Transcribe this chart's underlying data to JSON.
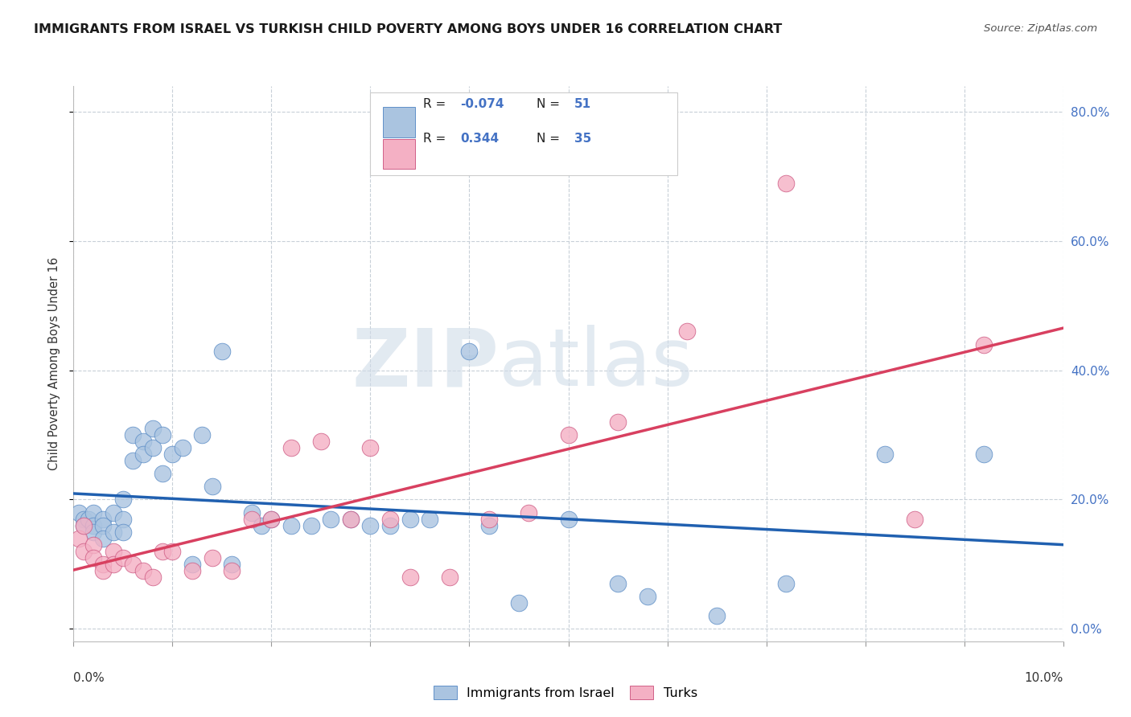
{
  "title": "IMMIGRANTS FROM ISRAEL VS TURKISH CHILD POVERTY AMONG BOYS UNDER 16 CORRELATION CHART",
  "source": "Source: ZipAtlas.com",
  "ylabel": "Child Poverty Among Boys Under 16",
  "legend_label1": "Immigrants from Israel",
  "legend_label2": "Turks",
  "R1": "-0.074",
  "N1": "51",
  "R2": "0.344",
  "N2": "35",
  "color_blue": "#aac4e0",
  "color_pink": "#f4b0c4",
  "line_color_blue": "#2060b0",
  "line_color_pink": "#d84060",
  "edge_blue": "#6090c8",
  "edge_pink": "#d06088",
  "xlim": [
    0.0,
    0.1
  ],
  "ylim": [
    -0.02,
    0.84
  ],
  "yticks": [
    0.0,
    0.2,
    0.4,
    0.6,
    0.8
  ],
  "yticklabels_right": [
    "0.0%",
    "20.0%",
    "40.0%",
    "60.0%",
    "80.0%"
  ],
  "blue_x": [
    0.0005,
    0.001,
    0.001,
    0.0015,
    0.002,
    0.002,
    0.002,
    0.003,
    0.003,
    0.003,
    0.004,
    0.004,
    0.005,
    0.005,
    0.005,
    0.006,
    0.006,
    0.007,
    0.007,
    0.008,
    0.008,
    0.009,
    0.009,
    0.01,
    0.011,
    0.012,
    0.013,
    0.014,
    0.015,
    0.016,
    0.018,
    0.019,
    0.02,
    0.022,
    0.024,
    0.026,
    0.028,
    0.03,
    0.032,
    0.034,
    0.036,
    0.04,
    0.042,
    0.045,
    0.05,
    0.055,
    0.058,
    0.065,
    0.072,
    0.082,
    0.092
  ],
  "blue_y": [
    0.18,
    0.17,
    0.16,
    0.17,
    0.18,
    0.16,
    0.15,
    0.17,
    0.16,
    0.14,
    0.18,
    0.15,
    0.2,
    0.17,
    0.15,
    0.3,
    0.26,
    0.29,
    0.27,
    0.31,
    0.28,
    0.3,
    0.24,
    0.27,
    0.28,
    0.1,
    0.3,
    0.22,
    0.43,
    0.1,
    0.18,
    0.16,
    0.17,
    0.16,
    0.16,
    0.17,
    0.17,
    0.16,
    0.16,
    0.17,
    0.17,
    0.43,
    0.16,
    0.04,
    0.17,
    0.07,
    0.05,
    0.02,
    0.07,
    0.27,
    0.27
  ],
  "pink_x": [
    0.0005,
    0.001,
    0.001,
    0.002,
    0.002,
    0.003,
    0.003,
    0.004,
    0.004,
    0.005,
    0.006,
    0.007,
    0.008,
    0.009,
    0.01,
    0.012,
    0.014,
    0.016,
    0.018,
    0.02,
    0.022,
    0.025,
    0.028,
    0.03,
    0.032,
    0.034,
    0.038,
    0.042,
    0.046,
    0.05,
    0.055,
    0.062,
    0.072,
    0.085,
    0.092
  ],
  "pink_y": [
    0.14,
    0.16,
    0.12,
    0.13,
    0.11,
    0.1,
    0.09,
    0.12,
    0.1,
    0.11,
    0.1,
    0.09,
    0.08,
    0.12,
    0.12,
    0.09,
    0.11,
    0.09,
    0.17,
    0.17,
    0.28,
    0.29,
    0.17,
    0.28,
    0.17,
    0.08,
    0.08,
    0.17,
    0.18,
    0.3,
    0.32,
    0.46,
    0.69,
    0.17,
    0.44
  ]
}
